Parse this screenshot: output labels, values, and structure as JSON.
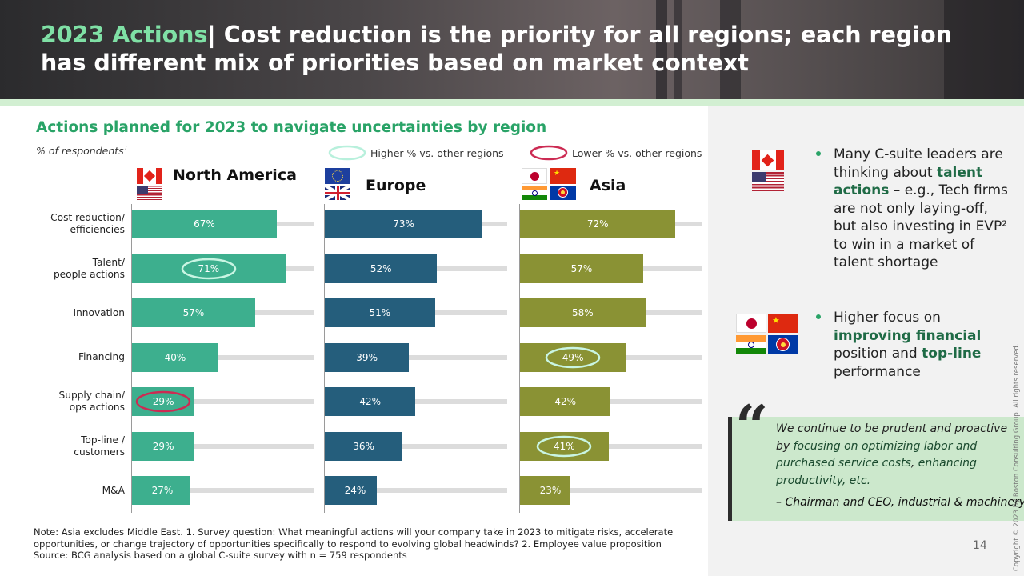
{
  "slide": {
    "title_accent": "2023 Actions",
    "title_separator": "|",
    "title_main": " Cost reduction is the priority for all regions; each region has different mix of priorities based on market context",
    "chart_title": "Actions planned for 2023 to navigate uncertainties by region",
    "respondents_label": "% of respondents",
    "respondents_sup": "1",
    "legend_higher": "Higher % vs. other regions",
    "legend_lower": "Lower % vs. other regions",
    "regions": [
      "North America",
      "Europe",
      "Asia"
    ],
    "categories": [
      {
        "line1": "Cost reduction/",
        "line2": "efficiencies"
      },
      {
        "line1": "Talent/",
        "line2": "people actions"
      },
      {
        "line1": "Innovation",
        "line2": ""
      },
      {
        "line1": "Financing",
        "line2": ""
      },
      {
        "line1": "Supply chain/",
        "line2": "ops actions"
      },
      {
        "line1": "Top-line /",
        "line2": "customers"
      },
      {
        "line1": "M&A",
        "line2": ""
      }
    ],
    "bullet1": {
      "pre": "Many C-suite leaders are thinking about ",
      "bold": "talent actions",
      "post": " – e.g., Tech firms are not only laying-off, but also investing in EVP² to win in a market of talent shortage"
    },
    "bullet2": {
      "pre": "Higher focus on ",
      "bold1": "improving financial",
      "mid": " position and ",
      "bold2": "top-line",
      "post": " performance"
    },
    "quote_mark": "“",
    "quote": {
      "t1": "We continue to be prudent and proactive by ",
      "t2": "focusing on optimizing labor and purchased service costs",
      "t3": ", ",
      "t4": "enhancing productivity, etc."
    },
    "quote_attribution": "– Chairman and CEO, industrial & machinery",
    "note": "Note: Asia excludes Middle East.   1. Survey question: What meaningful actions will your company take in 2023 to mitigate risks, accelerate opportunities, or change trajectory of opportunities specifically to respond to evolving global headwinds?  2. Employee value proposition",
    "source": "Source: BCG analysis based on a global C-suite survey with n = 759 respondents",
    "page_number": "14",
    "copyright": "Copyright © 2023 by Boston Consulting Group. All rights reserved."
  },
  "colors": {
    "north_america": "#3daf8e",
    "europe": "#255e7c",
    "asia": "#8a9234",
    "higher": "#7fe0c0",
    "lower": "#cc2b53"
  },
  "chart_data": {
    "type": "bar",
    "orientation": "horizontal",
    "categories": [
      "Cost reduction/ efficiencies",
      "Talent/ people actions",
      "Innovation",
      "Financing",
      "Supply chain/ ops actions",
      "Top-line / customers",
      "M&A"
    ],
    "series": [
      {
        "name": "North America",
        "values": [
          67,
          71,
          57,
          40,
          29,
          29,
          27
        ],
        "labels": [
          "67%",
          "71%",
          "57%",
          "40%",
          "29%",
          "29%",
          "27%"
        ],
        "highlight": [
          null,
          "higher",
          null,
          null,
          "lower",
          null,
          null
        ]
      },
      {
        "name": "Europe",
        "values": [
          73,
          52,
          51,
          39,
          42,
          36,
          24
        ],
        "labels": [
          "73%",
          "52%",
          "51%",
          "39%",
          "42%",
          "36%",
          "24%"
        ],
        "highlight": [
          null,
          null,
          null,
          null,
          null,
          null,
          null
        ]
      },
      {
        "name": "Asia",
        "values": [
          72,
          57,
          58,
          49,
          42,
          41,
          23
        ],
        "labels": [
          "72%",
          "57%",
          "58%",
          "49%",
          "42%",
          "41%",
          "23%"
        ],
        "highlight": [
          null,
          null,
          null,
          "higher",
          null,
          "higher",
          null
        ]
      }
    ],
    "unit": "%"
  }
}
